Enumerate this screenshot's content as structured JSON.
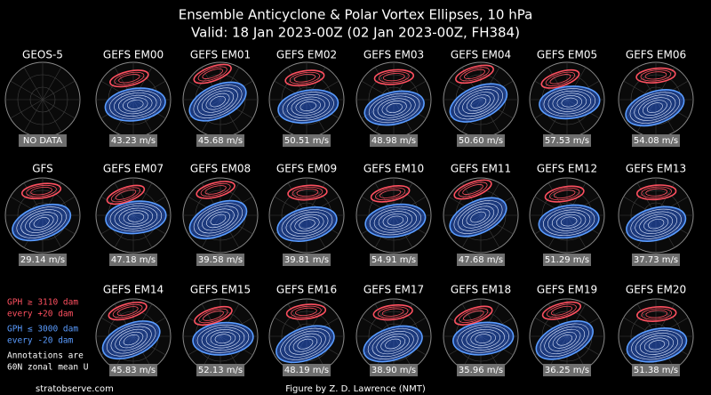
{
  "header": {
    "title": "Ensemble Anticyclone & Polar Vortex Ellipses, 10 hPa",
    "subtitle": "Valid: 18 Jan 2023-00Z  (02 Jan 2023-00Z, FH384)"
  },
  "panels": [
    {
      "label": "GEOS-5",
      "annotation": "NO DATA"
    },
    {
      "label": "GEFS EM00",
      "annotation": "43.23 m/s"
    },
    {
      "label": "GEFS EM01",
      "annotation": "45.68 m/s"
    },
    {
      "label": "GEFS EM02",
      "annotation": "50.51 m/s"
    },
    {
      "label": "GEFS EM03",
      "annotation": "48.98 m/s"
    },
    {
      "label": "GEFS EM04",
      "annotation": "50.60 m/s"
    },
    {
      "label": "GEFS EM05",
      "annotation": "57.53 m/s"
    },
    {
      "label": "GEFS EM06",
      "annotation": "54.08 m/s"
    },
    {
      "label": "GFS",
      "annotation": "29.14 m/s"
    },
    {
      "label": "GEFS EM07",
      "annotation": "47.18 m/s"
    },
    {
      "label": "GEFS EM08",
      "annotation": "39.58 m/s"
    },
    {
      "label": "GEFS EM09",
      "annotation": "39.81 m/s"
    },
    {
      "label": "GEFS EM10",
      "annotation": "54.91 m/s"
    },
    {
      "label": "GEFS EM11",
      "annotation": "47.68 m/s"
    },
    {
      "label": "GEFS EM12",
      "annotation": "51.29 m/s"
    },
    {
      "label": "GEFS EM13",
      "annotation": "37.73 m/s"
    },
    {
      "label": "GEFS EM14",
      "annotation": "45.83 m/s"
    },
    {
      "label": "GEFS EM15",
      "annotation": "52.13 m/s"
    },
    {
      "label": "GEFS EM16",
      "annotation": "48.19 m/s"
    },
    {
      "label": "GEFS EM17",
      "annotation": "38.90 m/s"
    },
    {
      "label": "GEFS EM18",
      "annotation": "35.96 m/s"
    },
    {
      "label": "GEFS EM19",
      "annotation": "36.25 m/s"
    },
    {
      "label": "GEFS EM20",
      "annotation": "51.38 m/s"
    }
  ],
  "legend": {
    "red": [
      "GPH ≥ 3110 dam",
      "every +20 dam"
    ],
    "blue": [
      "GPH ≤ 3000 dam",
      "every -20 dam"
    ],
    "note": [
      "Annotations are",
      "60N zonal mean U"
    ]
  },
  "footer": {
    "left": "stratobserve.com",
    "center": "Figure by Z. D. Lawrence (NMT)"
  }
}
